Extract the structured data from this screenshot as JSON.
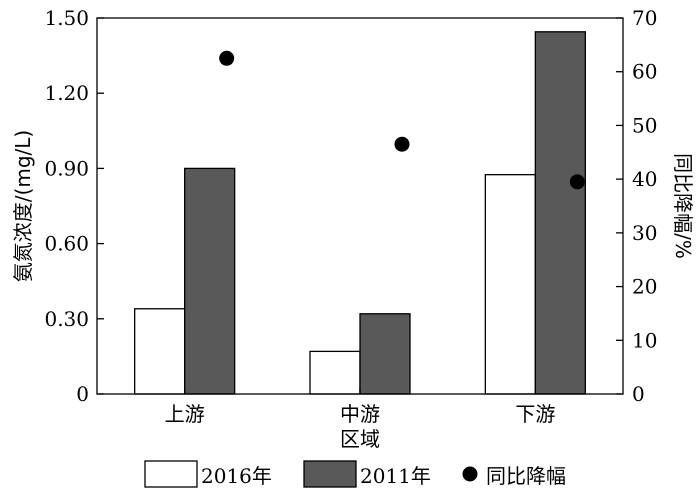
{
  "chart_data": {
    "type": "bar",
    "categories": [
      "上游",
      "中游",
      "下游"
    ],
    "series": [
      {
        "name": "2016年",
        "axis": "left",
        "kind": "bar",
        "fill": "#ffffff",
        "values": [
          0.34,
          0.17,
          0.875
        ]
      },
      {
        "name": "2011年",
        "axis": "left",
        "kind": "bar",
        "fill": "#595959",
        "values": [
          0.9,
          0.32,
          1.445
        ]
      },
      {
        "name": "同比降幅",
        "axis": "right",
        "kind": "scatter",
        "fill": "#000000",
        "values": [
          62.5,
          46.5,
          39.5
        ]
      }
    ],
    "xlabel": "区域",
    "ylabel": "氨氮浓度/(mg/L)",
    "y2label": "同比降幅/%",
    "ylim": [
      0,
      1.5
    ],
    "y2lim": [
      0,
      70
    ],
    "yticks": [
      "0",
      "0.30",
      "0.60",
      "0.90",
      "1.20",
      "1.50"
    ],
    "y2ticks": [
      "0",
      "10",
      "20",
      "30",
      "40",
      "50",
      "60",
      "70"
    ],
    "grid": false,
    "legend": "bottom"
  }
}
